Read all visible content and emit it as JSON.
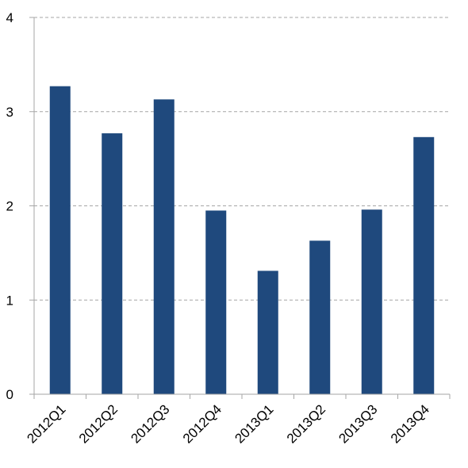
{
  "chart_data": {
    "type": "bar",
    "title": "",
    "xlabel": "",
    "ylabel": "",
    "categories": [
      "2012Q1",
      "2012Q2",
      "2012Q3",
      "2012Q4",
      "2013Q1",
      "2013Q2",
      "2013Q3",
      "2013Q4"
    ],
    "values": [
      3.27,
      2.77,
      3.13,
      1.95,
      1.31,
      1.63,
      1.96,
      2.73
    ],
    "ylim": [
      0,
      4
    ],
    "yticks": [
      "0",
      "1",
      "2",
      "3",
      "4"
    ],
    "grid": "horizontal dashed",
    "legend": "none",
    "colors": {
      "bar": "#1f497d",
      "grid": "#a6a6a6",
      "axis": "#a6a6a6"
    }
  }
}
